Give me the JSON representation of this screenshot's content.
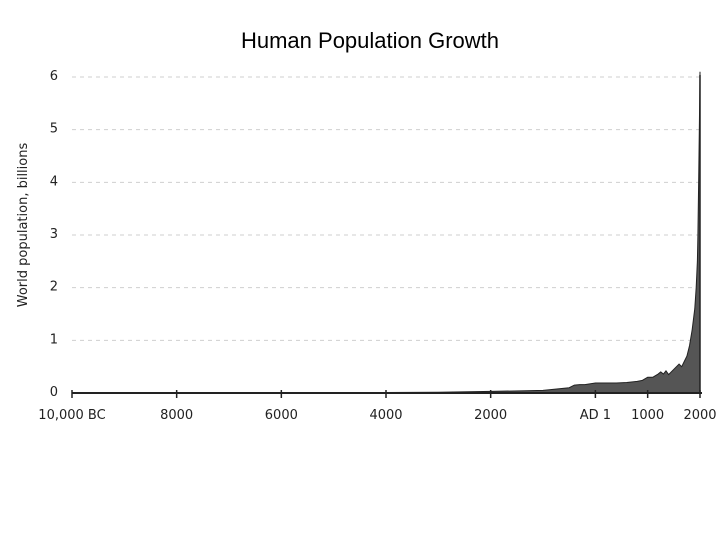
{
  "slide": {
    "title": "Human Population Growth"
  },
  "chart_data": {
    "type": "area",
    "title": "Human Population Growth",
    "xlabel": "",
    "ylabel": "World population, billions",
    "xlim": [
      -10000,
      2000
    ],
    "ylim": [
      0,
      6
    ],
    "grid": "horizontal dashed",
    "fill_color": "#555555",
    "line_color": "#222222",
    "x_ticks": [
      {
        "value": -10000,
        "label": "10,000 BC"
      },
      {
        "value": -8000,
        "label": "8000"
      },
      {
        "value": -6000,
        "label": "6000"
      },
      {
        "value": -4000,
        "label": "4000"
      },
      {
        "value": -2000,
        "label": "2000"
      },
      {
        "value": 1,
        "label": "AD 1"
      },
      {
        "value": 1000,
        "label": "1000"
      },
      {
        "value": 2000,
        "label": "2000"
      }
    ],
    "y_ticks": [
      {
        "value": 0,
        "label": "0"
      },
      {
        "value": 1,
        "label": "1"
      },
      {
        "value": 2,
        "label": "2"
      },
      {
        "value": 3,
        "label": "3"
      },
      {
        "value": 4,
        "label": "4"
      },
      {
        "value": 5,
        "label": "5"
      },
      {
        "value": 6,
        "label": "6"
      }
    ],
    "series": [
      {
        "x": [
          -10000,
          -8000,
          -6000,
          -4000,
          -3000,
          -2000,
          -1000,
          -500,
          -400,
          -300,
          -200,
          1,
          200,
          400,
          600,
          800,
          900,
          1000,
          1100,
          1200,
          1250,
          1300,
          1350,
          1400,
          1450,
          1500,
          1600,
          1650,
          1700,
          1750,
          1800,
          1850,
          1900,
          1927,
          1950,
          1960,
          1974,
          1987,
          1999,
          2000
        ],
        "y": [
          0.004,
          0.005,
          0.006,
          0.01,
          0.015,
          0.03,
          0.05,
          0.1,
          0.15,
          0.16,
          0.16,
          0.19,
          0.19,
          0.19,
          0.2,
          0.22,
          0.24,
          0.3,
          0.3,
          0.36,
          0.4,
          0.36,
          0.42,
          0.35,
          0.4,
          0.45,
          0.55,
          0.5,
          0.6,
          0.7,
          0.9,
          1.2,
          1.6,
          2.0,
          2.5,
          3.0,
          4.0,
          5.0,
          6.0,
          6.1
        ]
      }
    ]
  }
}
